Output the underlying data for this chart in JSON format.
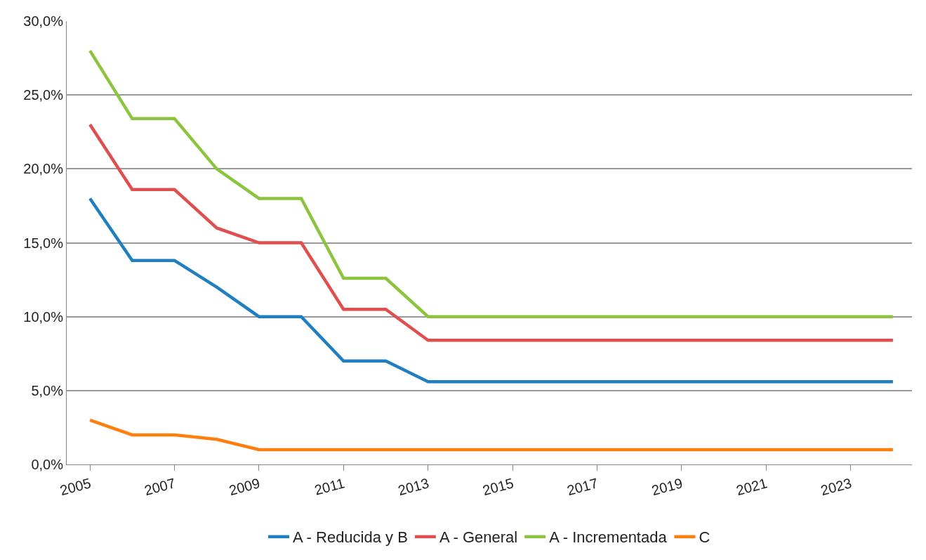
{
  "chart_data": {
    "type": "line",
    "categories": [
      "2005",
      null,
      "2007",
      null,
      "2009",
      null,
      "2011",
      null,
      "2013",
      null,
      "2015",
      null,
      "2017",
      null,
      "2019",
      null,
      "2021",
      null,
      "2023",
      null
    ],
    "series": [
      {
        "name": "A - Reducida y B",
        "color": "#1f7fc0",
        "values": [
          18,
          13.8,
          13.8,
          12,
          10,
          10,
          7,
          7,
          5.6,
          5.6,
          5.6,
          5.6,
          5.6,
          5.6,
          5.6,
          5.6,
          5.6,
          5.6,
          5.6,
          5.6
        ]
      },
      {
        "name": "A - General",
        "color": "#e04f4f",
        "values": [
          23,
          18.6,
          18.6,
          16,
          15,
          15,
          10.5,
          10.5,
          8.4,
          8.4,
          8.4,
          8.4,
          8.4,
          8.4,
          8.4,
          8.4,
          8.4,
          8.4,
          8.4,
          8.4
        ]
      },
      {
        "name": "A - Incrementada",
        "color": "#8cc43f",
        "values": [
          28,
          23.4,
          23.4,
          20,
          18,
          18,
          12.6,
          12.6,
          10,
          10,
          10,
          10,
          10,
          10,
          10,
          10,
          10,
          10,
          10,
          10
        ]
      },
      {
        "name": "C",
        "color": "#ff7f0e",
        "values": [
          3,
          2,
          2,
          1.7,
          1,
          1,
          1,
          1,
          1,
          1,
          1,
          1,
          1,
          1,
          1,
          1,
          1,
          1,
          1,
          1
        ]
      }
    ],
    "ylim": [
      0,
      30
    ],
    "yticks": [
      {
        "value": 0,
        "label": "0,0%"
      },
      {
        "value": 5,
        "label": "5,0%"
      },
      {
        "value": 10,
        "label": "10,0%"
      },
      {
        "value": 15,
        "label": "15,0%"
      },
      {
        "value": 20,
        "label": "20,0%"
      },
      {
        "value": 25,
        "label": "25,0%"
      },
      {
        "value": 30,
        "label": "30,0%"
      }
    ],
    "grid": "y",
    "legend": "bottom",
    "marker": "none",
    "line_style": "solid"
  }
}
